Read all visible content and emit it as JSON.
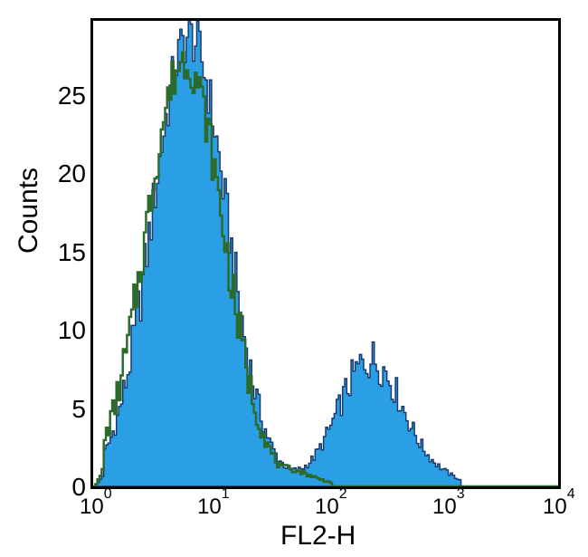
{
  "chart": {
    "type": "histogram",
    "xlabel": "FL2-H",
    "ylabel": "Counts",
    "label_fontsize": 30,
    "tick_fontsize": 28,
    "xscale": "log",
    "xlim": [
      1,
      10000
    ],
    "ylim": [
      0,
      30
    ],
    "xticks": [
      1,
      10,
      100,
      1000,
      10000
    ],
    "xtick_labels": [
      "10⁰",
      "10¹",
      "10²",
      "10³",
      "10⁴"
    ],
    "yticks": [
      0,
      5,
      10,
      15,
      20,
      25
    ],
    "background_color": "#ffffff",
    "border_color": "#000000",
    "border_width": 3,
    "series": [
      {
        "name": "filled",
        "fill_color": "#2b9fe6",
        "stroke_color": "#1a3a6b",
        "stroke_width": 1.5,
        "opacity": 1.0,
        "peaks": [
          {
            "x": 7,
            "height": 29
          },
          {
            "x": 250,
            "height": 8
          }
        ]
      },
      {
        "name": "outline",
        "fill_color": "none",
        "stroke_color": "#2d6b2d",
        "stroke_width": 2.5,
        "opacity": 1.0,
        "peaks": [
          {
            "x": 6,
            "height": 27
          }
        ]
      }
    ]
  }
}
